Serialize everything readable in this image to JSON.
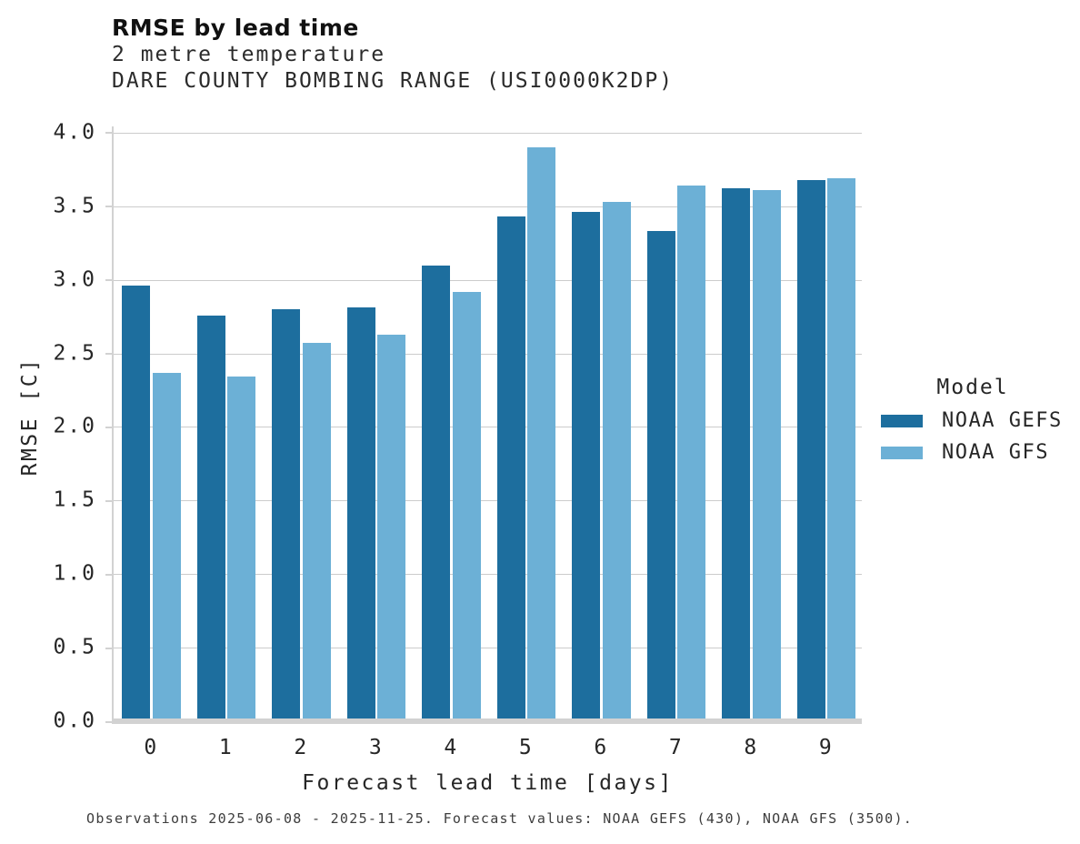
{
  "header": {
    "title": "RMSE by lead time",
    "subtitle_variable": "2 metre temperature",
    "subtitle_station": "DARE COUNTY BOMBING RANGE (USI0000K2DP)"
  },
  "chart_data": {
    "type": "bar",
    "categories": [
      "0",
      "1",
      "2",
      "3",
      "4",
      "5",
      "6",
      "7",
      "8",
      "9"
    ],
    "series": [
      {
        "name": "NOAA GEFS",
        "color": "#1d6e9e",
        "values": [
          2.96,
          2.76,
          2.8,
          2.81,
          3.1,
          3.43,
          3.46,
          3.33,
          3.62,
          3.68
        ]
      },
      {
        "name": "NOAA GFS",
        "color": "#6cb0d6",
        "values": [
          2.37,
          2.34,
          2.57,
          2.63,
          2.92,
          3.9,
          3.53,
          3.64,
          3.61,
          3.69
        ]
      }
    ],
    "title": "RMSE by lead time",
    "xlabel": "Forecast lead time [days]",
    "ylabel": "RMSE [C]",
    "ylim": [
      0,
      4.043
    ],
    "ytick_labels": [
      "0.0",
      "0.5",
      "1.0",
      "1.5",
      "2.0",
      "2.5",
      "3.0",
      "3.5",
      "4.0"
    ],
    "grid": "horizontal",
    "legend_position": "right-center"
  },
  "legend": {
    "title": "Model"
  },
  "caption": "Observations 2025-06-08 - 2025-11-25. Forecast values: NOAA GEFS (430), NOAA GFS (3500)."
}
